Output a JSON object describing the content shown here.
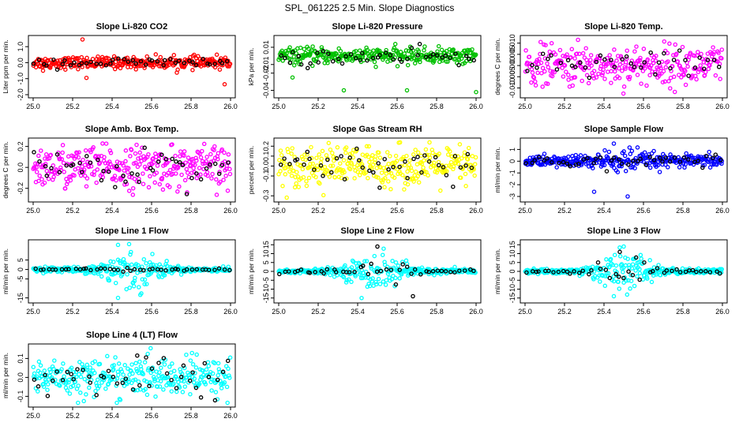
{
  "figure": {
    "title": "SPL_061225  2.5 Min. Slope Diagnostics"
  },
  "chart_data": [
    {
      "type": "scatter",
      "title": "Slope Li-820 CO2",
      "xlabel": "",
      "ylabel": "Liter ppm per min.",
      "xlim": [
        25.0,
        26.0
      ],
      "ylim": [
        -2.0,
        1.5
      ],
      "xticks": [
        "25.0",
        "25.2",
        "25.4",
        "25.6",
        "25.8",
        "26.0"
      ],
      "yticks": [
        -2.0,
        -1.0,
        0.0,
        1.0
      ],
      "ytick_labels": [
        "-2.0",
        "-1.0",
        "0.0",
        "1.0"
      ],
      "series": [
        {
          "name": "slopes",
          "color": "#ff0000",
          "n": 320,
          "center": 0.0,
          "spread": 0.18,
          "spread_mid": 0.18,
          "outliers": [
            [
              25.25,
              1.45
            ],
            [
              25.27,
              -0.95
            ],
            [
              25.97,
              -1.35
            ],
            [
              25.05,
              -0.5
            ]
          ]
        },
        {
          "name": "flagged",
          "color": "#000000",
          "n": 45,
          "center": 0.0,
          "spread": 0.15,
          "spread_mid": 0.15,
          "outliers": []
        }
      ]
    },
    {
      "type": "scatter",
      "title": "Slope Li-820 Pressure",
      "xlabel": "",
      "ylabel": "kPa per min.",
      "xlim": [
        25.0,
        26.0
      ],
      "ylim": [
        -0.045,
        0.02
      ],
      "xticks": [
        "25.0",
        "25.2",
        "25.4",
        "25.6",
        "25.8",
        "26.0"
      ],
      "yticks": [
        -0.04,
        -0.02,
        -0.01,
        0.01
      ],
      "ytick_labels": [
        "-0.04",
        "-0.02",
        "-0.01",
        "0.01"
      ],
      "series": [
        {
          "name": "slopes",
          "color": "#00c000",
          "n": 320,
          "center": 0.0,
          "spread": 0.0045,
          "spread_mid": 0.0045,
          "outliers": [
            [
              25.33,
              -0.04
            ],
            [
              25.65,
              -0.04
            ],
            [
              26.0,
              -0.042
            ],
            [
              25.07,
              -0.025
            ]
          ]
        },
        {
          "name": "flagged",
          "color": "#000000",
          "n": 45,
          "center": -0.002,
          "spread": 0.005,
          "spread_mid": 0.005,
          "outliers": []
        }
      ]
    },
    {
      "type": "scatter",
      "title": "Slope Li-820 Temp.",
      "xlabel": "",
      "ylabel": "degrees C per min.",
      "xlim": [
        25.0,
        26.0
      ],
      "ylim": [
        -0.013,
        0.012
      ],
      "xticks": [
        "25.0",
        "25.2",
        "25.4",
        "25.6",
        "25.8",
        "26.0"
      ],
      "yticks": [
        -0.01,
        -0.005,
        0.0,
        0.005,
        0.01
      ],
      "ytick_labels": [
        "-0.010",
        "-0.005",
        "0.000",
        "0.005",
        "0.010"
      ],
      "series": [
        {
          "name": "slopes",
          "color": "#ff00ff",
          "n": 300,
          "center": 0.0,
          "spread": 0.0045,
          "spread_mid": 0.0045,
          "outliers": []
        },
        {
          "name": "flagged",
          "color": "#000000",
          "n": 40,
          "center": 0.0,
          "spread": 0.003,
          "spread_mid": 0.003,
          "outliers": []
        }
      ]
    },
    {
      "type": "scatter",
      "title": "Slope Amb. Box Temp.",
      "xlabel": "",
      "ylabel": "degrees C per min.",
      "xlim": [
        25.0,
        26.0
      ],
      "ylim": [
        -0.3,
        0.25
      ],
      "xticks": [
        "25.0",
        "25.2",
        "25.4",
        "25.6",
        "25.8",
        "26.0"
      ],
      "yticks": [
        -0.2,
        0.0,
        0.2
      ],
      "ytick_labels": [
        "-0.2",
        "0.0",
        "0.2"
      ],
      "series": [
        {
          "name": "slopes",
          "color": "#ff00ff",
          "n": 320,
          "center": 0.0,
          "spread": 0.1,
          "spread_mid": 0.1,
          "outliers": []
        },
        {
          "name": "flagged",
          "color": "#000000",
          "n": 45,
          "center": 0.0,
          "spread": 0.09,
          "spread_mid": 0.09,
          "outliers": []
        }
      ]
    },
    {
      "type": "scatter",
      "title": "Slope Gas Stream RH",
      "xlabel": "",
      "ylabel": "percent per min.",
      "xlim": [
        25.0,
        26.0
      ],
      "ylim": [
        -0.33,
        0.25
      ],
      "xticks": [
        "25.0",
        "25.2",
        "25.4",
        "25.6",
        "25.8",
        "26.0"
      ],
      "yticks": [
        -0.3,
        -0.1,
        0.0,
        0.1,
        0.2
      ],
      "ytick_labels": [
        "-0.3",
        "-0.1",
        "0.0",
        "0.1",
        "0.2"
      ],
      "series": [
        {
          "name": "slopes",
          "color": "#ffff00",
          "n": 320,
          "center": 0.0,
          "spread": 0.1,
          "spread_mid": 0.1,
          "outliers": []
        },
        {
          "name": "flagged",
          "color": "#000000",
          "n": 45,
          "center": 0.0,
          "spread": 0.09,
          "spread_mid": 0.09,
          "outliers": []
        }
      ]
    },
    {
      "type": "scatter",
      "title": "Slope Sample Flow",
      "xlabel": "",
      "ylabel": "ml/min per min.",
      "xlim": [
        25.0,
        26.0
      ],
      "ylim": [
        -3.2,
        1.7
      ],
      "xticks": [
        "25.0",
        "25.2",
        "25.4",
        "25.6",
        "25.8",
        "26.0"
      ],
      "yticks": [
        -3.0,
        -2.0,
        -1.0,
        0.0,
        1.0
      ],
      "ytick_labels": [
        "-3",
        "-2",
        "-1",
        "0",
        "1"
      ],
      "series": [
        {
          "name": "slopes",
          "color": "#0000ff",
          "n": 320,
          "center": 0.0,
          "spread": 0.25,
          "spread_mid": 0.55,
          "outliers": [
            [
              25.45,
              1.5
            ],
            [
              25.52,
              -3.0
            ],
            [
              25.35,
              -2.6
            ]
          ]
        },
        {
          "name": "flagged",
          "color": "#000000",
          "n": 45,
          "center": 0.0,
          "spread": 0.3,
          "spread_mid": 0.6,
          "outliers": []
        }
      ]
    },
    {
      "type": "scatter",
      "title": "Slope Line 1 Flow",
      "xlabel": "",
      "ylabel": "ml/min per min.",
      "xlim": [
        25.0,
        26.0
      ],
      "ylim": [
        -16,
        14
      ],
      "xticks": [
        "25.0",
        "25.2",
        "25.4",
        "25.6",
        "25.8",
        "26.0"
      ],
      "yticks": [
        -15,
        -5,
        0,
        5
      ],
      "ytick_labels": [
        "-15",
        "-5",
        "0",
        "5"
      ],
      "series": [
        {
          "name": "slopes",
          "color": "#00ffff",
          "n": 320,
          "center": 0.0,
          "spread": 0.6,
          "spread_mid": 5.5,
          "outliers": [
            [
              25.43,
              13
            ],
            [
              25.43,
              -15
            ]
          ]
        },
        {
          "name": "flagged",
          "color": "#000000",
          "n": 45,
          "center": 0.0,
          "spread": 0.3,
          "spread_mid": 0.5,
          "outliers": []
        }
      ]
    },
    {
      "type": "scatter",
      "title": "Slope Line 2 Flow",
      "xlabel": "",
      "ylabel": "ml/min per min.",
      "xlim": [
        25.0,
        26.0
      ],
      "ylim": [
        -16,
        16
      ],
      "xticks": [
        "25.0",
        "25.2",
        "25.4",
        "25.6",
        "25.8",
        "26.0"
      ],
      "yticks": [
        -15,
        -10,
        -5,
        0,
        5,
        10,
        15
      ],
      "ytick_labels": [
        "-15",
        "-10",
        "-5",
        "0",
        "5",
        "10",
        "15"
      ],
      "series": [
        {
          "name": "slopes",
          "color": "#00ffff",
          "n": 320,
          "center": 0.0,
          "spread": 0.7,
          "spread_mid": 5.5,
          "outliers": [
            [
              25.42,
              -15
            ]
          ]
        },
        {
          "name": "flagged",
          "color": "#000000",
          "n": 45,
          "center": 0.0,
          "spread": 0.6,
          "spread_mid": 5.0,
          "outliers": [
            [
              25.5,
              14
            ],
            [
              25.68,
              -14
            ]
          ]
        }
      ]
    },
    {
      "type": "scatter",
      "title": "Slope Line 3 Flow",
      "xlabel": "",
      "ylabel": "ml/min per min.",
      "xlim": [
        25.0,
        26.0
      ],
      "ylim": [
        -16,
        16
      ],
      "xticks": [
        "25.0",
        "25.2",
        "25.4",
        "25.6",
        "25.8",
        "26.0"
      ],
      "yticks": [
        -15,
        -10,
        -5,
        0,
        5,
        10,
        15
      ],
      "ytick_labels": [
        "-15",
        "-10",
        "-5",
        "0",
        "5",
        "10",
        "15"
      ],
      "series": [
        {
          "name": "slopes",
          "color": "#00ffff",
          "n": 320,
          "center": 0.0,
          "spread": 0.7,
          "spread_mid": 5.5,
          "outliers": [
            [
              25.45,
              -14
            ],
            [
              25.5,
              14
            ]
          ]
        },
        {
          "name": "flagged",
          "color": "#000000",
          "n": 45,
          "center": 0.0,
          "spread": 0.6,
          "spread_mid": 4.5,
          "outliers": [
            [
              25.48,
              11
            ]
          ]
        }
      ]
    },
    {
      "type": "scatter",
      "title": "Slope Line 4 (LT) Flow",
      "xlabel": "",
      "ylabel": "ml/min per min.",
      "xlim": [
        25.0,
        26.0
      ],
      "ylim": [
        -0.14,
        0.16
      ],
      "xticks": [
        "25.0",
        "25.2",
        "25.4",
        "25.6",
        "25.8",
        "26.0"
      ],
      "yticks": [
        -0.1,
        0.0,
        0.1
      ],
      "ytick_labels": [
        "-0.1",
        "0.0",
        "0.1"
      ],
      "series": [
        {
          "name": "slopes",
          "color": "#00ffff",
          "n": 320,
          "center": 0.0,
          "spread": 0.05,
          "spread_mid": 0.05,
          "outliers": []
        },
        {
          "name": "flagged",
          "color": "#000000",
          "n": 45,
          "center": 0.0,
          "spread": 0.06,
          "spread_mid": 0.06,
          "outliers": []
        }
      ]
    }
  ]
}
